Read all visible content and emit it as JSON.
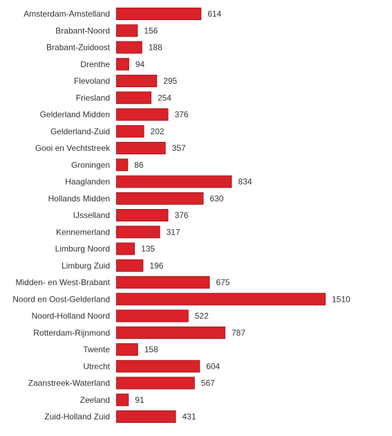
{
  "chart_data": {
    "type": "bar",
    "orientation": "horizontal",
    "categories": [
      "Amsterdam-Amstelland",
      "Brabant-Noord",
      "Brabant-Zuidoost",
      "Drenthe",
      "Flevoland",
      "Friesland",
      "Gelderland Midden",
      "Gelderland-Zuid",
      "Gooi en Vechtstreek",
      "Groningen",
      "Haaglanden",
      "Hollands Midden",
      "IJsselland",
      "Kennemerland",
      "Limburg Noord",
      "Limburg Zuid",
      "Midden- en West-Brabant",
      "Noord en Oost-Gelderland",
      "Noord-Holland Noord",
      "Rotterdam-Rijnmond",
      "Twente",
      "Utrecht",
      "Zaanstreek-Waterland",
      "Zeeland",
      "Zuid-Holland Zuid"
    ],
    "values": [
      614,
      156,
      188,
      94,
      295,
      254,
      376,
      202,
      357,
      86,
      834,
      630,
      376,
      317,
      135,
      196,
      675,
      1510,
      522,
      787,
      158,
      604,
      567,
      91,
      431
    ],
    "bar_color": "#d9222a",
    "bar_edge_color": "#a51a20",
    "xlim": [
      0,
      1510
    ],
    "grid": false,
    "legend": "none",
    "data_labels": true
  }
}
